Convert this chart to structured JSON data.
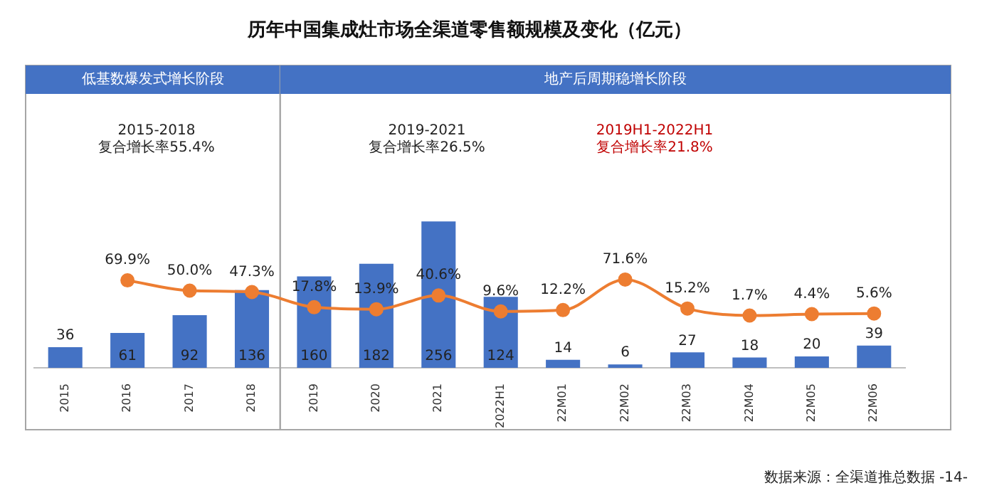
{
  "chart_data": {
    "type": "bar",
    "title": "历年中国集成灶市场全渠道零售额规模及变化（亿元）",
    "categories": [
      "2015",
      "2016",
      "2017",
      "2018",
      "2019",
      "2020",
      "2021",
      "2022H1",
      "22M01",
      "22M02",
      "22M03",
      "22M04",
      "22M05",
      "22M06"
    ],
    "series": [
      {
        "color": "#4472c4",
        "values": [
          36,
          61,
          92,
          136,
          160,
          182,
          256,
          124,
          14,
          6,
          27,
          18,
          20,
          39
        ]
      },
      {
        "type": "line",
        "axis": "y2",
        "color": "#ed7d31",
        "values": [
          null,
          69.9,
          50.0,
          47.3,
          17.8,
          13.9,
          40.6,
          9.6,
          12.2,
          71.6,
          15.2,
          1.7,
          4.4,
          5.6
        ],
        "value_labels": [
          null,
          "69.9%",
          "50.0%",
          "47.3%",
          "17.8%",
          "13.9%",
          "40.6%",
          "9.6%",
          "12.2%",
          "71.6%",
          "15.2%",
          "1.7%",
          "4.4%",
          "5.6%"
        ]
      }
    ],
    "data_labels": true,
    "tick_labels": "x",
    "grid": false,
    "legend": false,
    "marker": "circle",
    "annotations": [
      "低基数爆发式增长阶段",
      "地产后周期稳增长阶段",
      "2015-2018\n复合增长率55.4%",
      "2019-2021\n复合增长率26.5%",
      "2019H1-2022H1\n复合增长率21.8%",
      "数据来源：全渠道推总数据 -14-"
    ]
  }
}
